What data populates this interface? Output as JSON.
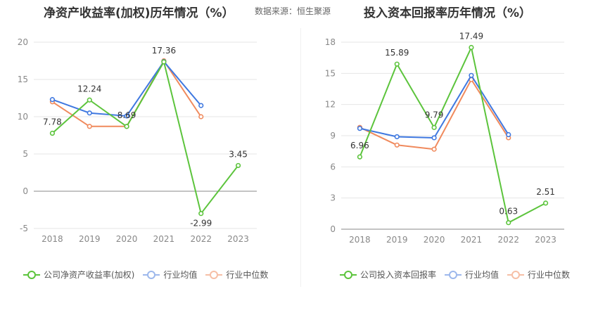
{
  "source_label": "数据来源：恒生聚源",
  "colors": {
    "company": "#5cc43c",
    "avg": "#3f78e0",
    "median": "#f08a5d"
  },
  "chart_data": [
    {
      "type": "line",
      "title": "净资产收益率(加权)历年情况（%）",
      "categories": [
        "2018",
        "2019",
        "2020",
        "2021",
        "2022",
        "2023"
      ],
      "ylim": [
        -5,
        20
      ],
      "yticks": [
        -5,
        0,
        5,
        10,
        15,
        20
      ],
      "grid": true,
      "legend_position": "bottom-left",
      "series": [
        {
          "name": "公司净资产收益率(加权)",
          "key": "company",
          "values": [
            7.78,
            12.24,
            8.69,
            17.36,
            -2.99,
            3.45
          ],
          "labels": [
            "7.78",
            "12.24",
            "8.69",
            "17.36",
            "-2.99",
            "3.45"
          ]
        },
        {
          "name": "行业均值",
          "key": "avg",
          "values": [
            12.3,
            10.5,
            10.1,
            17.4,
            11.5,
            null
          ]
        },
        {
          "name": "行业中位数",
          "key": "median",
          "values": [
            12.0,
            8.7,
            8.7,
            17.5,
            10.0,
            null
          ]
        }
      ]
    },
    {
      "type": "line",
      "title": "投入资本回报率历年情况（%）",
      "categories": [
        "2018",
        "2019",
        "2020",
        "2021",
        "2022",
        "2023"
      ],
      "ylim": [
        0,
        18
      ],
      "yticks": [
        0,
        3,
        6,
        9,
        12,
        15,
        18
      ],
      "grid": true,
      "legend_position": "bottom-left",
      "series": [
        {
          "name": "公司投入资本回报率",
          "key": "company",
          "values": [
            6.96,
            15.89,
            9.79,
            17.49,
            0.63,
            2.51
          ],
          "labels": [
            "6.96",
            "15.89",
            "9.79",
            "17.49",
            "0.63",
            "2.51"
          ]
        },
        {
          "name": "行业均值",
          "key": "avg",
          "values": [
            9.7,
            8.9,
            8.8,
            14.8,
            9.1,
            null
          ]
        },
        {
          "name": "行业中位数",
          "key": "median",
          "values": [
            9.8,
            8.1,
            7.7,
            14.4,
            8.8,
            null
          ]
        }
      ]
    }
  ]
}
